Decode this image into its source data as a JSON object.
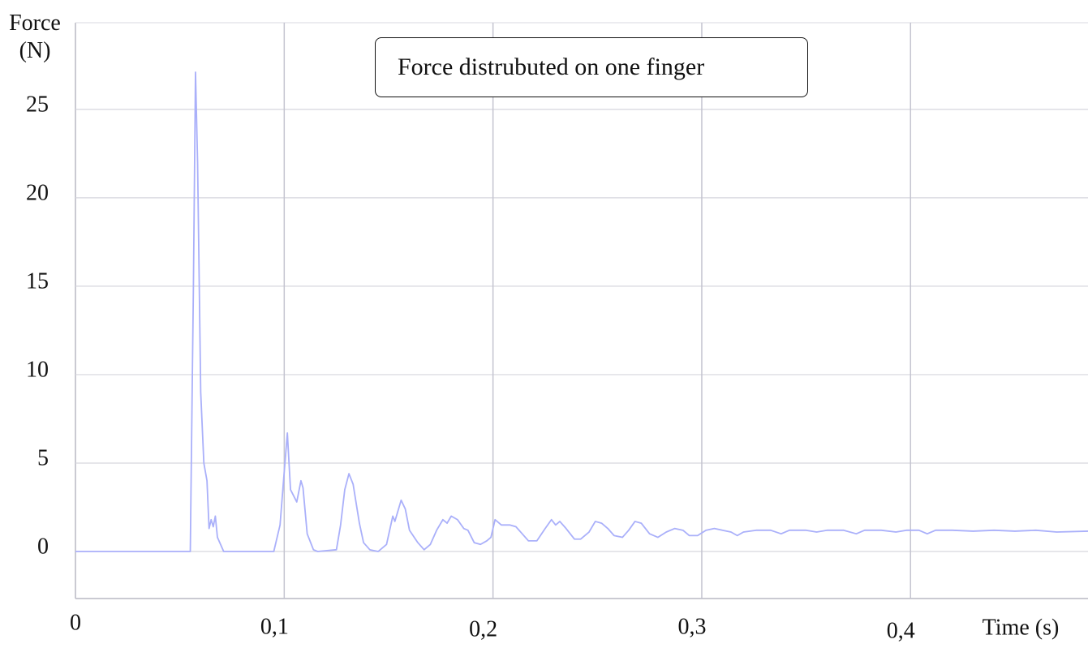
{
  "chart_data": {
    "type": "line",
    "title": "Force distrubuted on one finger",
    "y_label": "Force (N)",
    "x_label": "Time (s)",
    "xlim": [
      0,
      0.485
    ],
    "ylim": [
      -2.66,
      29.9
    ],
    "xticks": [
      0,
      {
        "value": 0.1,
        "label": "0,1"
      },
      {
        "value": 0.2,
        "label": "0,2"
      },
      {
        "value": 0.3,
        "label": "0,3"
      },
      {
        "value": 0.4,
        "label": "0,4"
      }
    ],
    "yticks": [
      0,
      5,
      10,
      15,
      20,
      25
    ],
    "grid": true,
    "series": [
      {
        "name": "Force",
        "color": "#aab0fa",
        "x": [
          0,
          0.055,
          0.0565,
          0.0575,
          0.0585,
          0.06,
          0.0615,
          0.063,
          0.064,
          0.065,
          0.066,
          0.067,
          0.068,
          0.071,
          0.095,
          0.098,
          0.1,
          0.1015,
          0.103,
          0.106,
          0.108,
          0.109,
          0.111,
          0.114,
          0.116,
          0.125,
          0.127,
          0.129,
          0.131,
          0.133,
          0.136,
          0.138,
          0.141,
          0.145,
          0.149,
          0.152,
          0.153,
          0.156,
          0.158,
          0.16,
          0.164,
          0.167,
          0.17,
          0.173,
          0.176,
          0.178,
          0.18,
          0.183,
          0.186,
          0.188,
          0.191,
          0.194,
          0.197,
          0.199,
          0.201,
          0.204,
          0.208,
          0.211,
          0.214,
          0.217,
          0.221,
          0.225,
          0.228,
          0.23,
          0.232,
          0.235,
          0.239,
          0.242,
          0.246,
          0.249,
          0.252,
          0.255,
          0.258,
          0.262,
          0.265,
          0.268,
          0.271,
          0.275,
          0.279,
          0.283,
          0.287,
          0.291,
          0.294,
          0.298,
          0.302,
          0.306,
          0.31,
          0.314,
          0.317,
          0.32,
          0.326,
          0.333,
          0.338,
          0.342,
          0.35,
          0.355,
          0.36,
          0.368,
          0.374,
          0.378,
          0.386,
          0.393,
          0.398,
          0.404,
          0.408,
          0.412,
          0.42,
          0.43,
          0.44,
          0.45,
          0.46,
          0.47,
          0.485
        ],
        "values": [
          0,
          0,
          15,
          27.1,
          22,
          9,
          5,
          4,
          1.3,
          1.8,
          1.4,
          2.0,
          0.8,
          0,
          0,
          1.5,
          4.5,
          6.7,
          3.5,
          2.8,
          4,
          3.6,
          1.0,
          0.1,
          0,
          0.1,
          1.5,
          3.5,
          4.4,
          3.8,
          1.6,
          0.5,
          0.1,
          0,
          0.4,
          2.0,
          1.7,
          2.9,
          2.4,
          1.2,
          0.5,
          0.1,
          0.4,
          1.2,
          1.8,
          1.6,
          2.0,
          1.8,
          1.3,
          1.2,
          0.5,
          0.4,
          0.6,
          0.8,
          1.8,
          1.5,
          1.5,
          1.4,
          1.0,
          0.6,
          0.6,
          1.3,
          1.8,
          1.5,
          1.7,
          1.3,
          0.7,
          0.7,
          1.1,
          1.7,
          1.6,
          1.3,
          0.9,
          0.8,
          1.2,
          1.7,
          1.6,
          1.0,
          0.8,
          1.1,
          1.3,
          1.2,
          0.9,
          0.9,
          1.2,
          1.3,
          1.2,
          1.1,
          0.9,
          1.1,
          1.2,
          1.2,
          1.0,
          1.2,
          1.2,
          1.1,
          1.2,
          1.2,
          1.0,
          1.2,
          1.2,
          1.1,
          1.2,
          1.2,
          1.0,
          1.2,
          1.2,
          1.15,
          1.2,
          1.15,
          1.2,
          1.1,
          1.15
        ]
      }
    ]
  }
}
